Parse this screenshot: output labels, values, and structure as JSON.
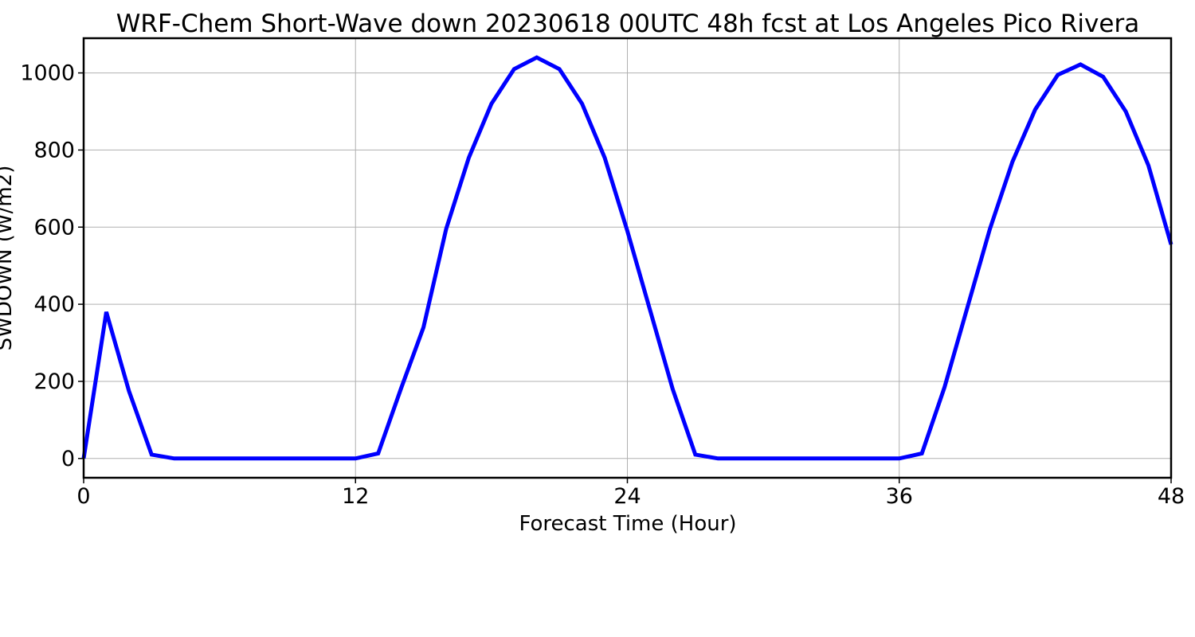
{
  "chart_data": {
    "type": "line",
    "title": "WRF-Chem Short-Wave down  20230618 00UTC 48h fcst at Los Angeles Pico Rivera",
    "xlabel": "Forecast Time (Hour)",
    "ylabel": "SWDOWN  (W/m2)",
    "xlim": [
      0,
      48
    ],
    "ylim": [
      -50,
      1090
    ],
    "xticks": [
      0,
      12,
      24,
      36,
      48
    ],
    "yticks": [
      0,
      200,
      400,
      600,
      800,
      1000
    ],
    "grid": true,
    "series": [
      {
        "color": "#0000ff",
        "x": [
          0,
          1,
          2,
          3,
          4,
          5,
          6,
          7,
          8,
          9,
          10,
          11,
          12,
          13,
          14,
          15,
          16,
          17,
          18,
          19,
          20,
          21,
          22,
          23,
          24,
          25,
          26,
          27,
          28,
          29,
          30,
          31,
          32,
          33,
          34,
          35,
          36,
          37,
          38,
          39,
          40,
          41,
          42,
          43,
          44,
          45,
          46,
          47,
          48
        ],
        "y": [
          0,
          380,
          175,
          10,
          0,
          0,
          0,
          0,
          0,
          0,
          0,
          0,
          0,
          13,
          180,
          340,
          595,
          780,
          920,
          1010,
          1040,
          1010,
          920,
          780,
          590,
          385,
          180,
          10,
          0,
          0,
          0,
          0,
          0,
          0,
          0,
          0,
          0,
          13,
          185,
          390,
          595,
          770,
          905,
          995,
          1022,
          990,
          900,
          760,
          555
        ]
      }
    ]
  }
}
